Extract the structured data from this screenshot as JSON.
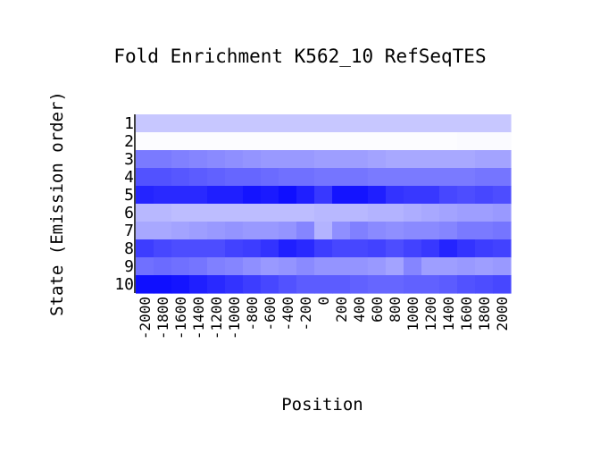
{
  "chart_data": {
    "type": "heatmap",
    "title": "Fold Enrichment K562_10 RefSeqTES",
    "xlabel": "Position",
    "ylabel": "State (Emission order)",
    "x": [
      -2000,
      -1800,
      -1600,
      -1400,
      -1200,
      -1000,
      -800,
      -600,
      -400,
      -200,
      0,
      200,
      400,
      600,
      800,
      1000,
      1200,
      1400,
      1600,
      1800,
      2000
    ],
    "x_tick_labels": [
      "-2000",
      "-1800",
      "-1600",
      "-1400",
      "-1200",
      "-1000",
      "-800",
      "-600",
      "-400",
      "-200",
      "0",
      "200",
      "400",
      "600",
      "800",
      "1000",
      "1200",
      "1400",
      "1600",
      "1800",
      "2000"
    ],
    "y": [
      "1",
      "2",
      "3",
      "4",
      "5",
      "6",
      "7",
      "8",
      "9",
      "10"
    ],
    "color_low": "#ffffff",
    "color_high": "#0000ff",
    "value_range": [
      0,
      1
    ],
    "values": [
      [
        0.22,
        0.22,
        0.22,
        0.22,
        0.22,
        0.22,
        0.22,
        0.22,
        0.22,
        0.22,
        0.22,
        0.22,
        0.22,
        0.22,
        0.22,
        0.22,
        0.22,
        0.22,
        0.22,
        0.22,
        0.22
      ],
      [
        0.01,
        0.01,
        0.01,
        0.01,
        0.01,
        0.01,
        0.01,
        0.01,
        0.01,
        0.01,
        0.01,
        0.01,
        0.01,
        0.01,
        0.01,
        0.01,
        0.01,
        0.01,
        0.02,
        0.02,
        0.02
      ],
      [
        0.52,
        0.52,
        0.5,
        0.48,
        0.46,
        0.44,
        0.42,
        0.4,
        0.4,
        0.4,
        0.38,
        0.38,
        0.38,
        0.36,
        0.34,
        0.34,
        0.34,
        0.34,
        0.34,
        0.36,
        0.36
      ],
      [
        0.68,
        0.68,
        0.66,
        0.64,
        0.62,
        0.6,
        0.6,
        0.58,
        0.56,
        0.56,
        0.54,
        0.54,
        0.54,
        0.52,
        0.52,
        0.52,
        0.52,
        0.52,
        0.52,
        0.54,
        0.54
      ],
      [
        0.86,
        0.84,
        0.84,
        0.84,
        0.88,
        0.88,
        0.92,
        0.9,
        0.94,
        0.88,
        0.78,
        0.92,
        0.92,
        0.88,
        0.8,
        0.78,
        0.78,
        0.72,
        0.7,
        0.72,
        0.7
      ],
      [
        0.28,
        0.28,
        0.26,
        0.26,
        0.26,
        0.26,
        0.26,
        0.26,
        0.26,
        0.26,
        0.28,
        0.28,
        0.28,
        0.3,
        0.3,
        0.32,
        0.34,
        0.36,
        0.38,
        0.38,
        0.4
      ],
      [
        0.34,
        0.34,
        0.36,
        0.38,
        0.4,
        0.42,
        0.4,
        0.4,
        0.42,
        0.48,
        0.3,
        0.44,
        0.5,
        0.46,
        0.44,
        0.46,
        0.46,
        0.48,
        0.52,
        0.52,
        0.54
      ],
      [
        0.76,
        0.72,
        0.7,
        0.7,
        0.7,
        0.74,
        0.76,
        0.8,
        0.88,
        0.84,
        0.76,
        0.72,
        0.72,
        0.74,
        0.7,
        0.74,
        0.78,
        0.86,
        0.8,
        0.76,
        0.74
      ],
      [
        0.56,
        0.58,
        0.56,
        0.54,
        0.5,
        0.48,
        0.44,
        0.4,
        0.42,
        0.46,
        0.42,
        0.42,
        0.42,
        0.4,
        0.36,
        0.48,
        0.38,
        0.38,
        0.4,
        0.38,
        0.4
      ],
      [
        0.94,
        0.94,
        0.92,
        0.88,
        0.84,
        0.8,
        0.76,
        0.72,
        0.68,
        0.64,
        0.64,
        0.64,
        0.62,
        0.6,
        0.6,
        0.62,
        0.62,
        0.64,
        0.68,
        0.7,
        0.72
      ]
    ]
  }
}
